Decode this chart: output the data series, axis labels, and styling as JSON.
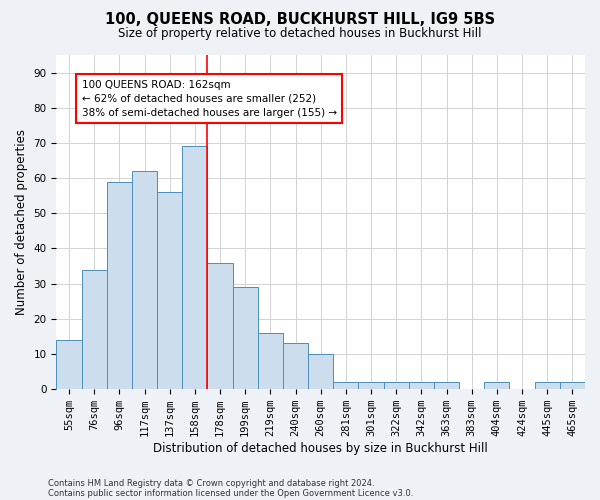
{
  "title1": "100, QUEENS ROAD, BUCKHURST HILL, IG9 5BS",
  "title2": "Size of property relative to detached houses in Buckhurst Hill",
  "xlabel": "Distribution of detached houses by size in Buckhurst Hill",
  "ylabel": "Number of detached properties",
  "categories": [
    "55sqm",
    "76sqm",
    "96sqm",
    "117sqm",
    "137sqm",
    "158sqm",
    "178sqm",
    "199sqm",
    "219sqm",
    "240sqm",
    "260sqm",
    "281sqm",
    "301sqm",
    "322sqm",
    "342sqm",
    "363sqm",
    "383sqm",
    "404sqm",
    "424sqm",
    "445sqm",
    "465sqm"
  ],
  "values": [
    14,
    34,
    59,
    62,
    56,
    69,
    36,
    29,
    16,
    13,
    10,
    2,
    2,
    2,
    2,
    2,
    0,
    2,
    0,
    2,
    2
  ],
  "bar_color": "#ccdded",
  "bar_edge_color": "#4a90b8",
  "vline_x": 5.5,
  "vline_color": "red",
  "annotation_text": "100 QUEENS ROAD: 162sqm\n← 62% of detached houses are smaller (252)\n38% of semi-detached houses are larger (155) →",
  "annotation_box_color": "white",
  "annotation_box_edge_color": "red",
  "footnote1": "Contains HM Land Registry data © Crown copyright and database right 2024.",
  "footnote2": "Contains public sector information licensed under the Open Government Licence v3.0.",
  "ylim": [
    0,
    95
  ],
  "yticks": [
    0,
    10,
    20,
    30,
    40,
    50,
    60,
    70,
    80,
    90
  ],
  "bg_color": "#eef2f7",
  "plot_bg_color": "#ffffff",
  "grid_color": "#cccccc",
  "title1_fontsize": 10.5,
  "title2_fontsize": 8.5,
  "xlabel_fontsize": 8.5,
  "ylabel_fontsize": 8.5,
  "tick_fontsize": 7.5,
  "annotation_fontsize": 7.5,
  "footnote_fontsize": 6.0
}
